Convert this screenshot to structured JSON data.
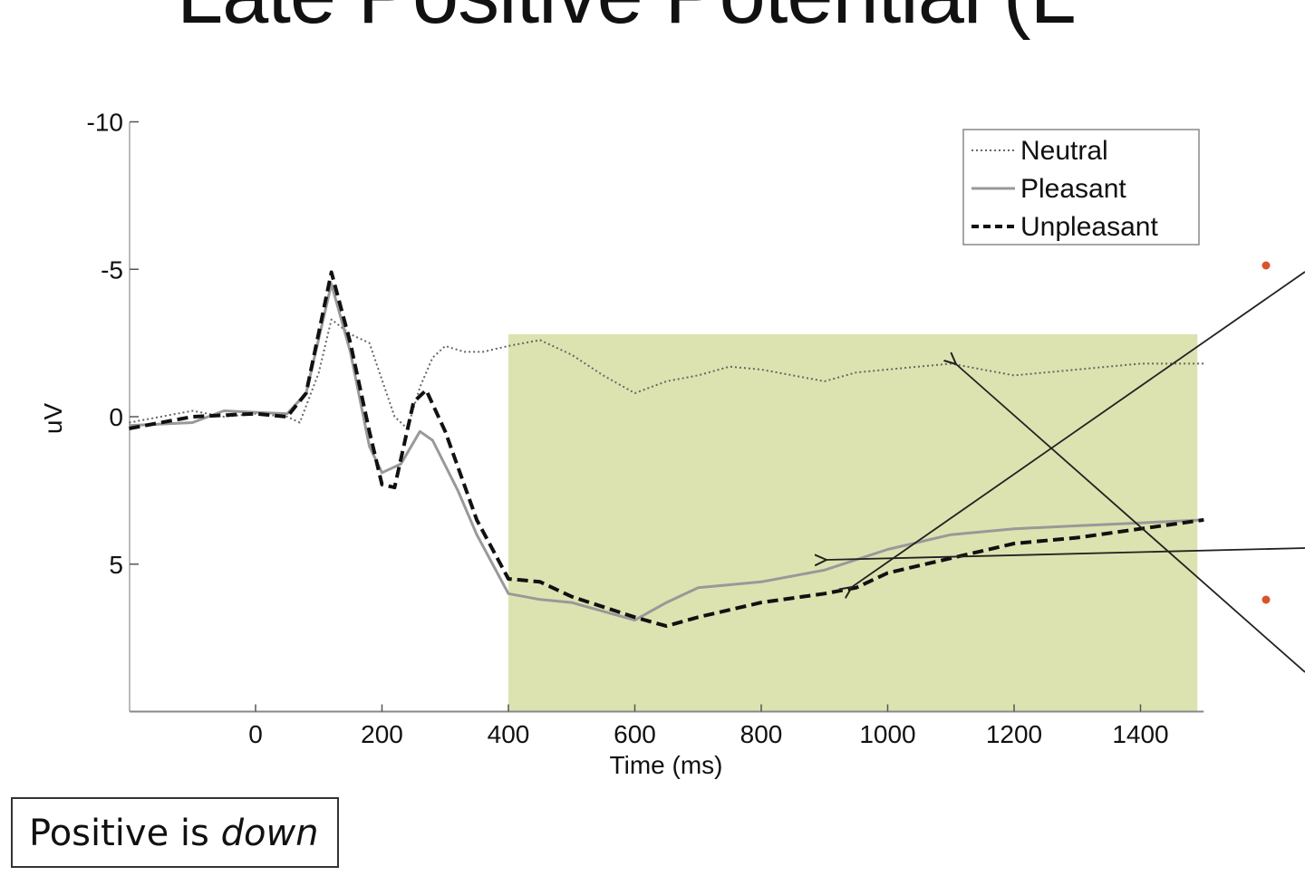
{
  "slide": {
    "title": "Late Positive Potential (L",
    "note_prefix": "Positive is ",
    "note_emphasis": "down"
  },
  "colors": {
    "shade": "#dde3b0",
    "neutral": "#666666",
    "pleasant": "#999999",
    "unpleasant": "#111111",
    "bullet": "#d9532b"
  },
  "chart_data": {
    "type": "line",
    "xlabel": "Time (ms)",
    "ylabel": "uV",
    "xlim": [
      -200,
      1500
    ],
    "ylim": [
      -10,
      10
    ],
    "y_inverted": true,
    "xticks": [
      0,
      200,
      400,
      600,
      800,
      1000,
      1200,
      1400
    ],
    "yticks": [
      -10,
      -5,
      0,
      5
    ],
    "legend_position": "top-right",
    "shaded_region": {
      "x": [
        400,
        1490
      ],
      "y": [
        -2.8,
        10
      ]
    },
    "series": [
      {
        "name": "Neutral",
        "style": "dotted",
        "x": [
          -200,
          -150,
          -100,
          -50,
          0,
          50,
          70,
          100,
          120,
          150,
          180,
          220,
          240,
          260,
          280,
          300,
          330,
          360,
          400,
          450,
          500,
          550,
          600,
          650,
          700,
          750,
          800,
          850,
          900,
          950,
          1000,
          1100,
          1200,
          1300,
          1400,
          1500
        ],
        "y": [
          0.2,
          0,
          -0.2,
          0,
          -0.1,
          0,
          0.2,
          -1.5,
          -3.3,
          -2.8,
          -2.5,
          0,
          0.4,
          -1,
          -2,
          -2.4,
          -2.2,
          -2.2,
          -2.4,
          -2.6,
          -2.1,
          -1.4,
          -0.8,
          -1.2,
          -1.4,
          -1.7,
          -1.6,
          -1.4,
          -1.2,
          -1.5,
          -1.6,
          -1.8,
          -1.4,
          -1.6,
          -1.8,
          -1.8
        ]
      },
      {
        "name": "Pleasant",
        "style": "solid",
        "x": [
          -200,
          -100,
          -50,
          50,
          80,
          120,
          150,
          180,
          200,
          230,
          260,
          280,
          320,
          350,
          400,
          450,
          500,
          600,
          650,
          700,
          800,
          900,
          1000,
          1100,
          1200,
          1300,
          1400,
          1500
        ],
        "y": [
          0.3,
          0.2,
          -0.2,
          -0.1,
          -0.8,
          -4.5,
          -2.2,
          1,
          1.9,
          1.6,
          0.5,
          0.8,
          2.5,
          4,
          6,
          6.2,
          6.3,
          6.9,
          6.3,
          5.8,
          5.6,
          5.2,
          4.5,
          4,
          3.8,
          3.7,
          3.6,
          3.5
        ]
      },
      {
        "name": "Unpleasant",
        "style": "dashed",
        "x": [
          -200,
          -100,
          0,
          50,
          80,
          120,
          150,
          180,
          200,
          220,
          250,
          270,
          300,
          350,
          400,
          450,
          500,
          600,
          650,
          700,
          800,
          900,
          950,
          1000,
          1100,
          1200,
          1300,
          1400,
          1500
        ],
        "y": [
          0.4,
          0,
          -0.1,
          0,
          -0.8,
          -4.9,
          -2.5,
          0.5,
          2.3,
          2.4,
          -0.5,
          -0.9,
          0.5,
          3.5,
          5.5,
          5.6,
          6.1,
          6.8,
          7.1,
          6.8,
          6.3,
          6,
          5.8,
          5.3,
          4.8,
          4.3,
          4.1,
          3.8,
          3.5
        ]
      }
    ]
  }
}
